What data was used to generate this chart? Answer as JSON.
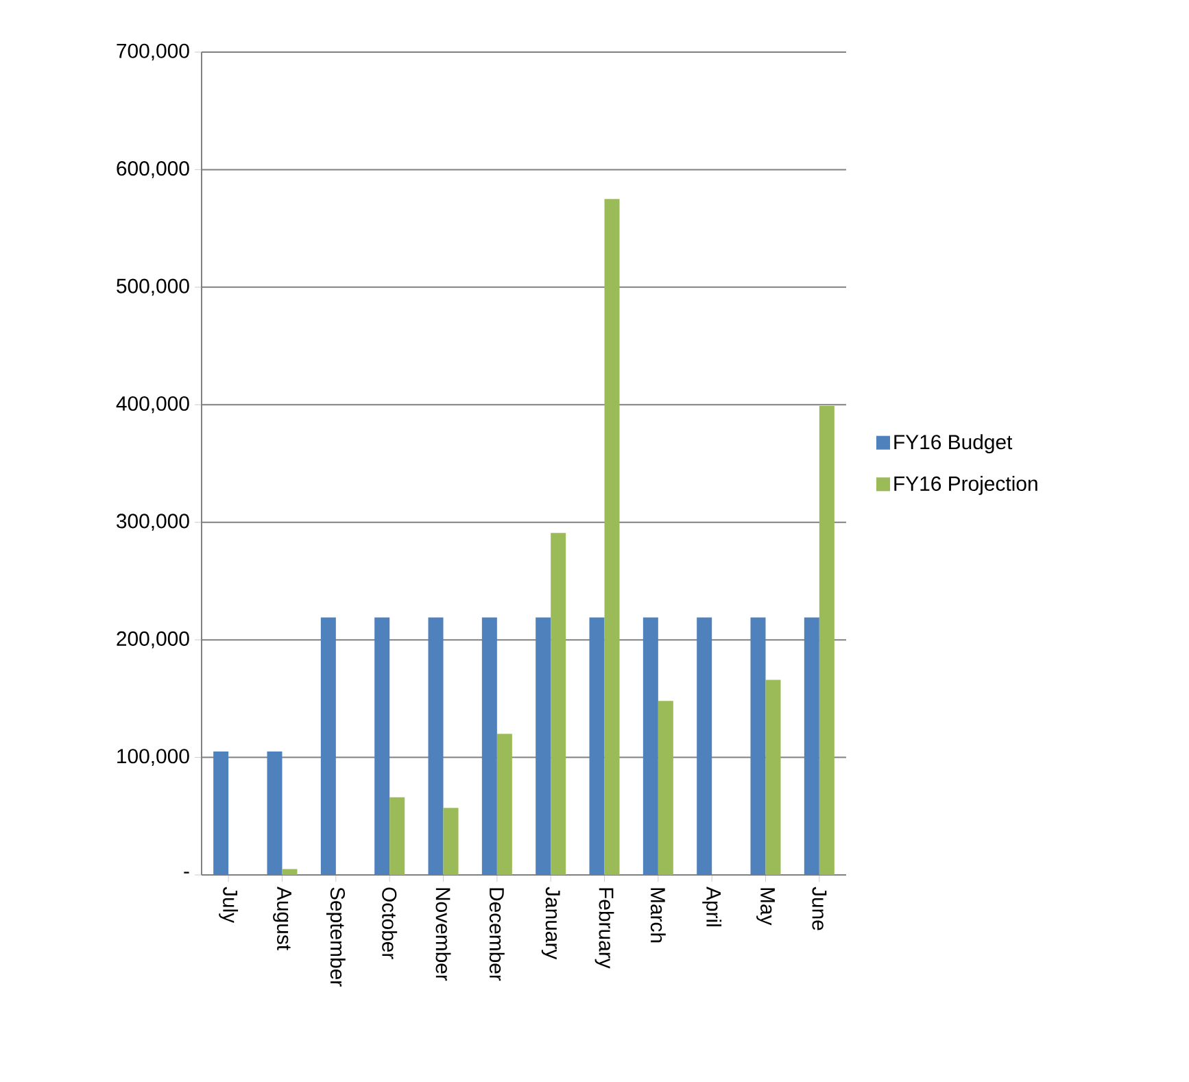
{
  "chart_data": {
    "type": "bar",
    "categories": [
      "July",
      "August",
      "September",
      "October",
      "November",
      "December",
      "January",
      "February",
      "March",
      "April",
      "May",
      "June"
    ],
    "series": [
      {
        "name": "FY16 Budget",
        "color": "#4f81bd",
        "values": [
          105000,
          105000,
          219000,
          219000,
          219000,
          219000,
          219000,
          219000,
          219000,
          219000,
          219000,
          219000
        ]
      },
      {
        "name": "FY16 Projection",
        "color": "#9bbb59",
        "values": [
          0,
          5000,
          0,
          66000,
          57000,
          120000,
          291000,
          575000,
          148000,
          null,
          166000,
          399000
        ]
      }
    ],
    "ylim": [
      0,
      700000
    ],
    "yticks": [
      {
        "value": 0,
        "label": "-"
      },
      {
        "value": 100000,
        "label": "100,000"
      },
      {
        "value": 200000,
        "label": "200,000"
      },
      {
        "value": 300000,
        "label": "300,000"
      },
      {
        "value": 400000,
        "label": "400,000"
      },
      {
        "value": 500000,
        "label": "500,000"
      },
      {
        "value": 600000,
        "label": "600,000"
      },
      {
        "value": 700000,
        "label": "700,000"
      }
    ],
    "grid": "y",
    "legend": "right"
  }
}
